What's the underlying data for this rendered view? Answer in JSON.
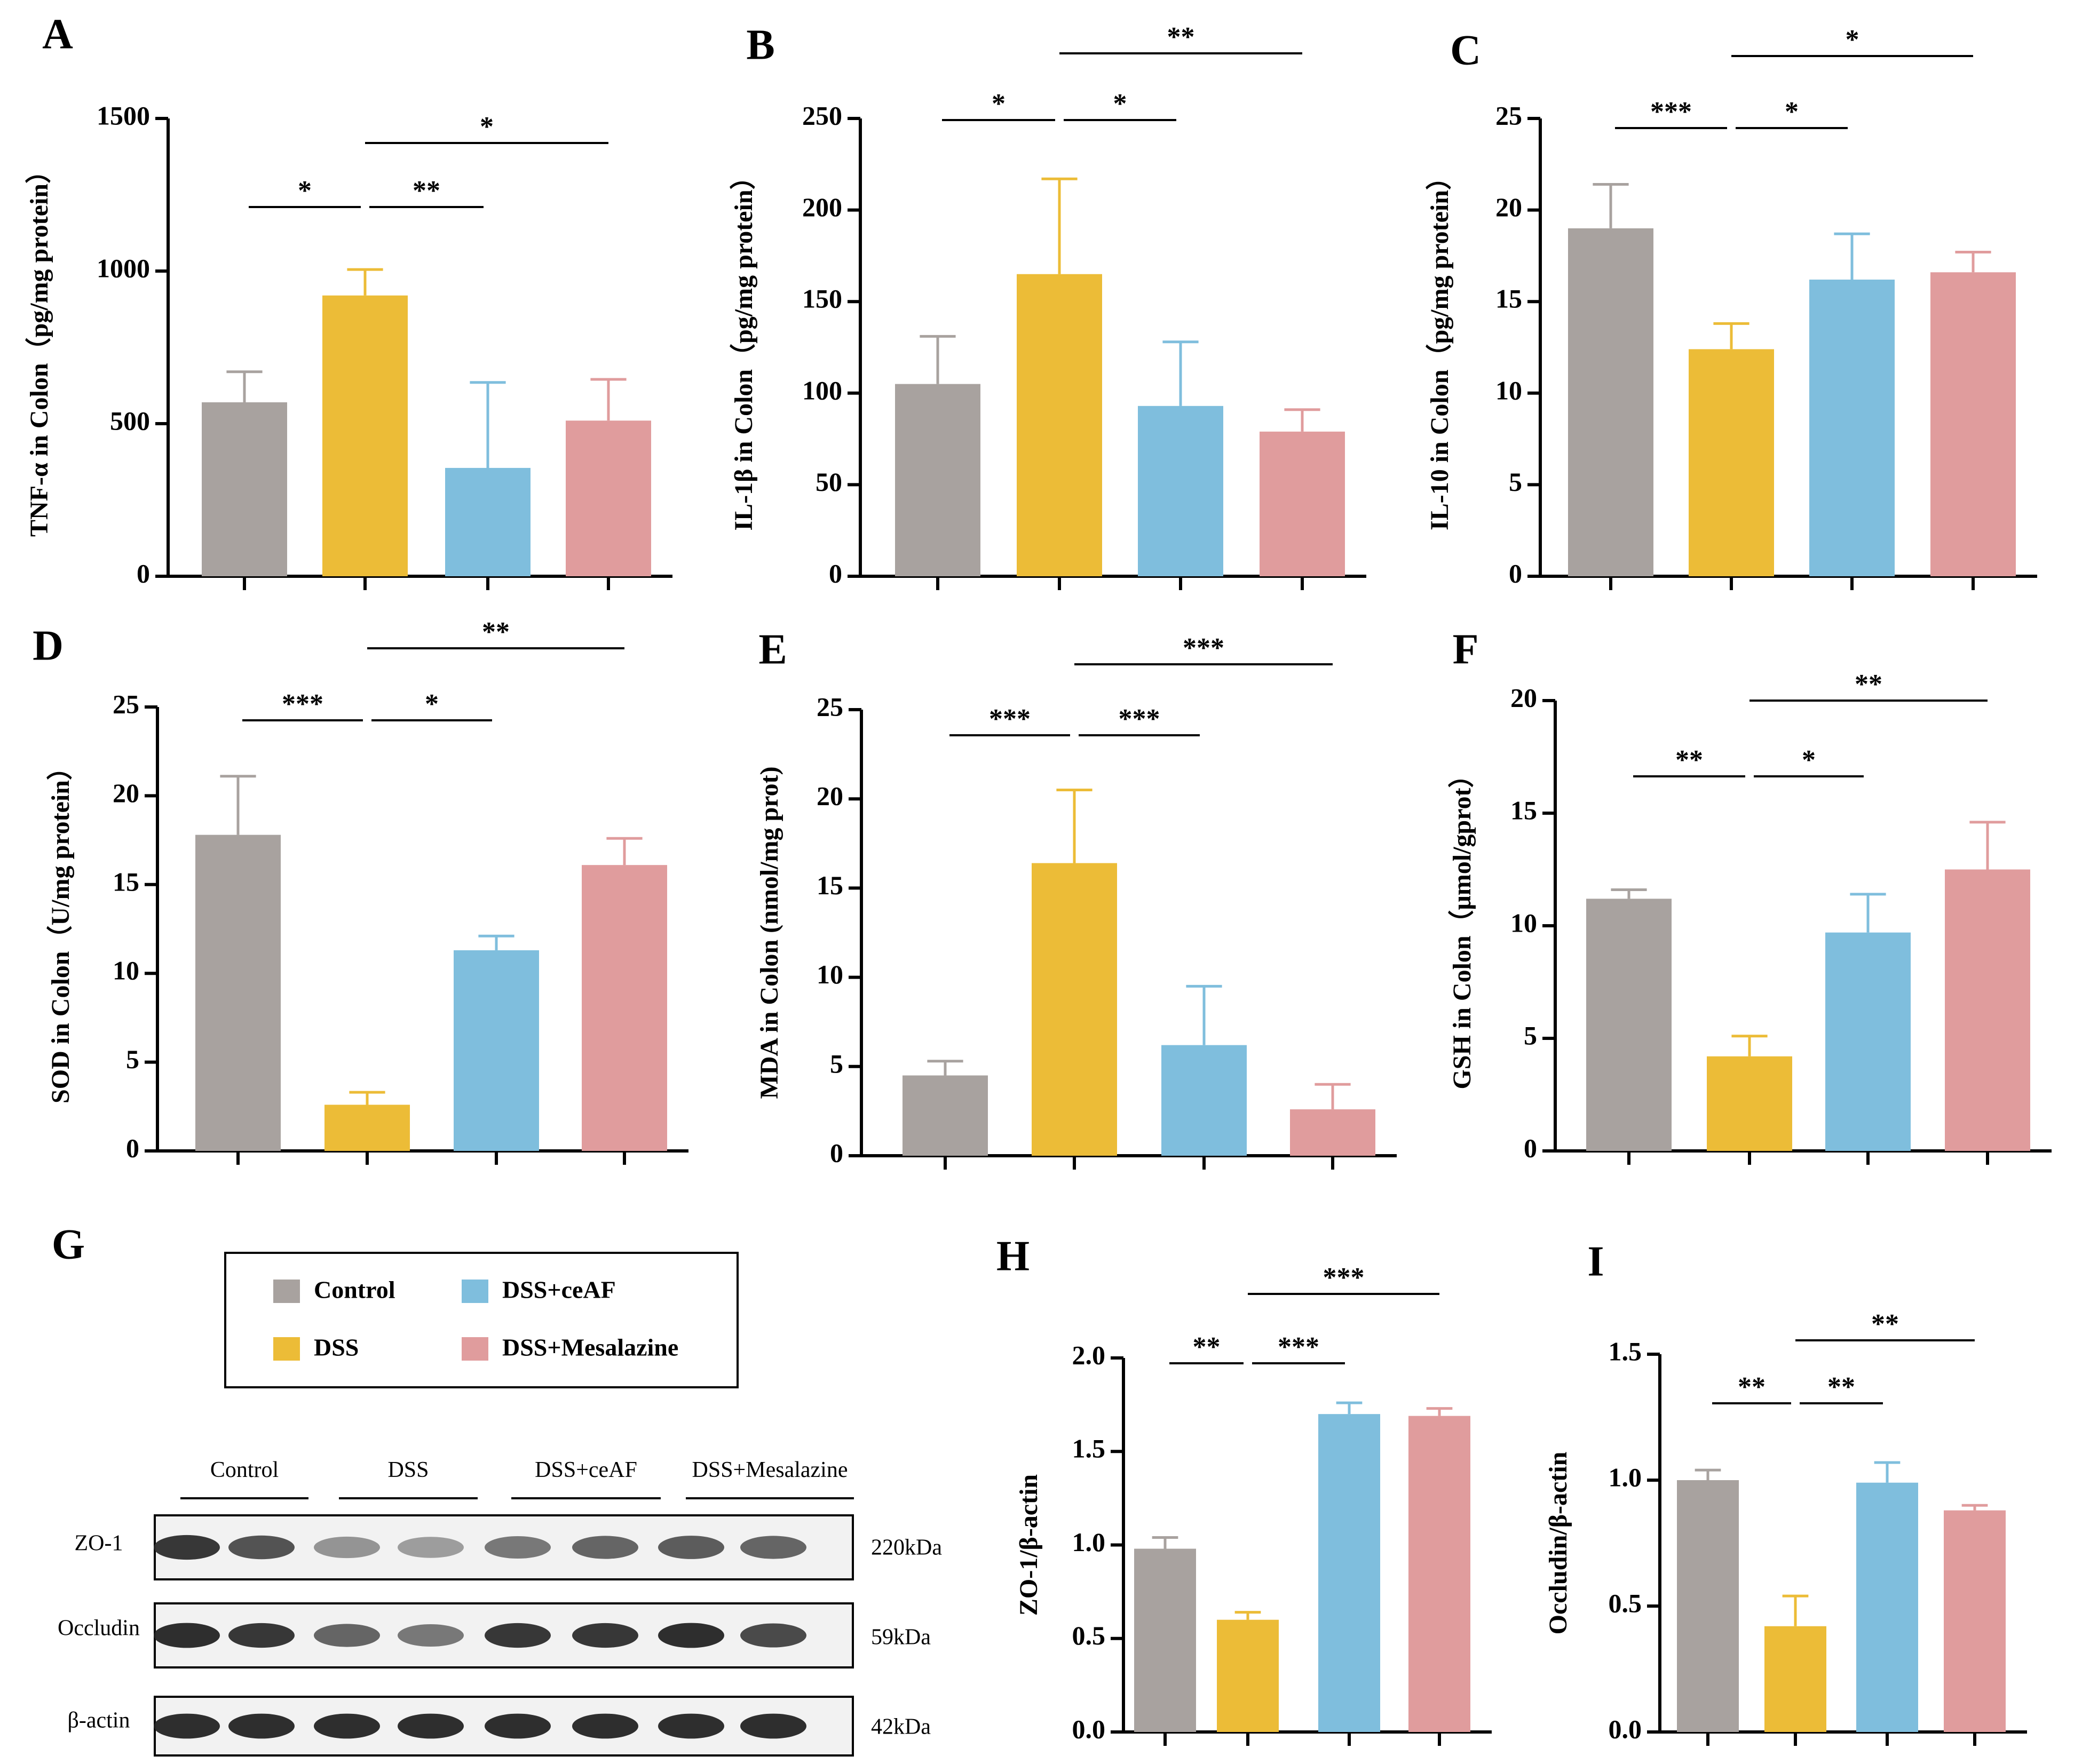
{
  "colors": {
    "Control": "#a8a29f",
    "DSS": "#ecbc37",
    "DSS+ceAF": "#7fbedd",
    "DSS+Mesalazine": "#e09c9d",
    "axis": "#000000"
  },
  "groups": [
    "Control",
    "DSS",
    "DSS+ceAF",
    "DSS+Mesalazine"
  ],
  "chart_data": [
    {
      "panel": "A",
      "type": "bar",
      "ylabel": "TNF-α in Colon（pg/mg protein）",
      "ylim": [
        0,
        1500
      ],
      "yticks": [
        0,
        500,
        1000,
        1500
      ],
      "values": [
        570,
        920,
        355,
        510
      ],
      "errors": [
        100,
        85,
        280,
        135
      ],
      "significance": [
        {
          "from": 0,
          "to": 1,
          "label": "*",
          "level": 1
        },
        {
          "from": 1,
          "to": 2,
          "label": "**",
          "level": 1
        },
        {
          "from": 1,
          "to": 3,
          "label": "*",
          "level": 2
        }
      ]
    },
    {
      "panel": "B",
      "type": "bar",
      "ylabel": "IL-1β in Colon（pg/mg protein）",
      "ylim": [
        0,
        250
      ],
      "yticks": [
        0,
        50,
        100,
        150,
        200,
        250
      ],
      "values": [
        105,
        165,
        93,
        79
      ],
      "errors": [
        26,
        52,
        35,
        12
      ],
      "significance": [
        {
          "from": 0,
          "to": 1,
          "label": "*",
          "level": 1
        },
        {
          "from": 1,
          "to": 2,
          "label": "*",
          "level": 1
        },
        {
          "from": 1,
          "to": 3,
          "label": "**",
          "level": 2
        }
      ]
    },
    {
      "panel": "C",
      "type": "bar",
      "ylabel": "IL-10 in Colon（pg/mg protein）",
      "ylim": [
        0,
        25
      ],
      "yticks": [
        0,
        5,
        10,
        15,
        20,
        25
      ],
      "values": [
        19.0,
        12.4,
        16.2,
        16.6
      ],
      "errors": [
        2.4,
        1.4,
        2.5,
        1.1
      ],
      "significance": [
        {
          "from": 0,
          "to": 1,
          "label": "***",
          "level": 1
        },
        {
          "from": 1,
          "to": 2,
          "label": "*",
          "level": 1
        },
        {
          "from": 1,
          "to": 3,
          "label": "*",
          "level": 2
        }
      ]
    },
    {
      "panel": "D",
      "type": "bar",
      "ylabel": "SOD in Colon（U/mg protein）",
      "ylim": [
        0,
        25
      ],
      "yticks": [
        0,
        5,
        10,
        15,
        20,
        25
      ],
      "values": [
        17.8,
        2.6,
        11.3,
        16.1
      ],
      "errors": [
        3.3,
        0.7,
        0.8,
        1.5
      ],
      "significance": [
        {
          "from": 0,
          "to": 1,
          "label": "***",
          "level": 1
        },
        {
          "from": 1,
          "to": 2,
          "label": "*",
          "level": 1
        },
        {
          "from": 1,
          "to": 3,
          "label": "**",
          "level": 2
        }
      ]
    },
    {
      "panel": "E",
      "type": "bar",
      "ylabel": "MDA in Colon (nmol/mg prot)",
      "ylim": [
        0,
        25
      ],
      "yticks": [
        0,
        5,
        10,
        15,
        20,
        25
      ],
      "values": [
        4.5,
        16.4,
        6.2,
        2.6
      ],
      "errors": [
        0.8,
        4.1,
        3.3,
        1.4
      ],
      "significance": [
        {
          "from": 0,
          "to": 1,
          "label": "***",
          "level": 1
        },
        {
          "from": 1,
          "to": 2,
          "label": "***",
          "level": 1
        },
        {
          "from": 1,
          "to": 3,
          "label": "***",
          "level": 2
        }
      ]
    },
    {
      "panel": "F",
      "type": "bar",
      "ylabel": "GSH in Colon（μmol/gprot）",
      "ylim": [
        0,
        20
      ],
      "yticks": [
        0,
        5,
        10,
        15,
        20
      ],
      "values": [
        11.2,
        4.2,
        9.7,
        12.5
      ],
      "errors": [
        0.4,
        0.9,
        1.7,
        2.1
      ],
      "significance": [
        {
          "from": 0,
          "to": 1,
          "label": "**",
          "level": 1
        },
        {
          "from": 1,
          "to": 2,
          "label": "*",
          "level": 1
        },
        {
          "from": 1,
          "to": 3,
          "label": "**",
          "level": 2
        }
      ]
    },
    {
      "panel": "H",
      "type": "bar",
      "ylabel": "ZO-1/β-actin",
      "ylim": [
        0,
        2.0
      ],
      "yticks": [
        "0.0",
        "0.5",
        "1.0",
        "1.5",
        "2.0"
      ],
      "values": [
        0.98,
        0.6,
        1.7,
        1.69
      ],
      "errors": [
        0.06,
        0.04,
        0.06,
        0.04
      ],
      "significance": [
        {
          "from": 0,
          "to": 1,
          "label": "**",
          "level": 1
        },
        {
          "from": 1,
          "to": 2,
          "label": "***",
          "level": 1
        },
        {
          "from": 1,
          "to": 3,
          "label": "***",
          "level": 2
        }
      ]
    },
    {
      "panel": "I",
      "type": "bar",
      "ylabel": "Occludin/β-actin",
      "ylim": [
        0,
        1.5
      ],
      "yticks": [
        "0.0",
        "0.5",
        "1.0",
        "1.5"
      ],
      "values": [
        1.0,
        0.42,
        0.99,
        0.88
      ],
      "errors": [
        0.04,
        0.12,
        0.08,
        0.02
      ],
      "significance": [
        {
          "from": 0,
          "to": 1,
          "label": "**",
          "level": 1
        },
        {
          "from": 1,
          "to": 2,
          "label": "**",
          "level": 1
        },
        {
          "from": 1,
          "to": 3,
          "label": "**",
          "level": 2
        }
      ]
    }
  ],
  "panel_g": {
    "letter": "G",
    "legend": [
      "Control",
      "DSS",
      "DSS+ceAF",
      "DSS+Mesalazine"
    ],
    "lane_groups": [
      "Control",
      "DSS",
      "DSS+ceAF",
      "DSS+Mesalazine"
    ],
    "blots": [
      {
        "protein": "ZO-1",
        "size": "220kDa",
        "intensity": [
          0.85,
          0.7,
          0.35,
          0.3,
          0.5,
          0.6,
          0.65,
          0.6
        ]
      },
      {
        "protein": "Occludin",
        "size": "59kDa",
        "intensity": [
          0.9,
          0.85,
          0.6,
          0.5,
          0.85,
          0.85,
          0.9,
          0.75
        ]
      },
      {
        "protein": "β-actin",
        "size": "42kDa",
        "intensity": [
          0.9,
          0.9,
          0.9,
          0.9,
          0.9,
          0.9,
          0.9,
          0.9
        ]
      }
    ]
  }
}
